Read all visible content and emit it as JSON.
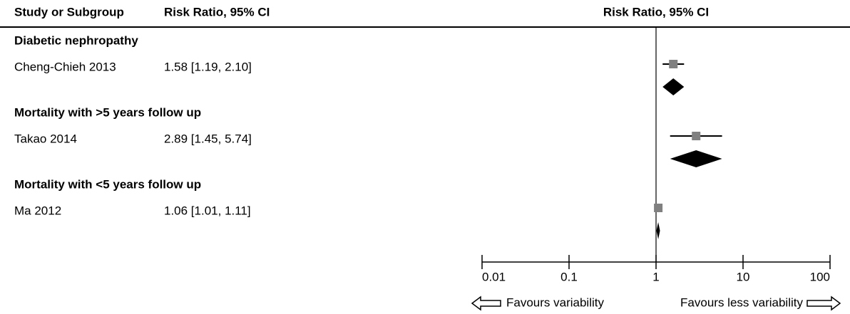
{
  "chart_data": {
    "type": "forest",
    "column_headers": [
      "Study or Subgroup",
      "Risk Ratio, 95% CI"
    ],
    "plot_header": "Risk Ratio, 95% CI",
    "x_scale": "log",
    "xlim": [
      0.01,
      100
    ],
    "xticks": [
      0.01,
      0.1,
      1,
      10,
      100
    ],
    "favours_left": "Favours variability",
    "favours_right": "Favours less variability",
    "study_color": "#808080",
    "summary_color": "#000000",
    "groups": [
      {
        "name": "Diabetic nephropathy",
        "studies": [
          "Cheng-Chieh 2013"
        ],
        "values": [
          1.58
        ],
        "lower": [
          1.19
        ],
        "upper": [
          2.1
        ],
        "value_labels": [
          "1.58 [1.19, 2.10]"
        ]
      },
      {
        "name": "Mortality with >5 years follow up",
        "studies": [
          "Takao 2014"
        ],
        "values": [
          2.89
        ],
        "lower": [
          1.45
        ],
        "upper": [
          5.74
        ],
        "value_labels": [
          "2.89 [1.45, 5.74]"
        ]
      },
      {
        "name": "Mortality with <5 years follow up",
        "studies": [
          "Ma 2012"
        ],
        "values": [
          1.06
        ],
        "lower": [
          1.01
        ],
        "upper": [
          1.11
        ],
        "value_labels": [
          "1.06 [1.01, 1.11]"
        ]
      }
    ]
  }
}
